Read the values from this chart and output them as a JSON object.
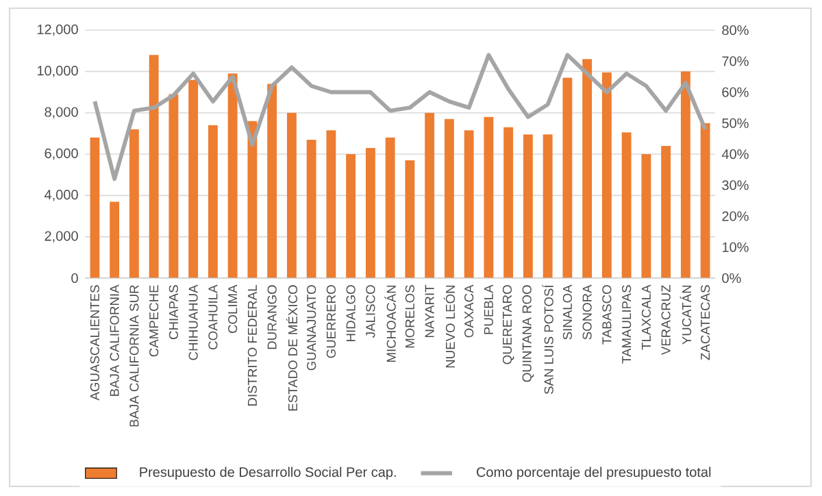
{
  "chart_data": {
    "type": "bar",
    "categories": [
      "AGUASCALIENTES",
      "BAJA CALIFORNIA",
      "BAJA CALIFORNIA SUR",
      "CAMPECHE",
      "CHIAPAS",
      "CHIHUAHUA",
      "COAHUILA",
      "COLIMA",
      "DISTRITO FEDERAL",
      "DURANGO",
      "ESTADO DE MÉXICO",
      "GUANAJUATO",
      "GUERRERO",
      "HIDALGO",
      "JALISCO",
      "MICHOACÁN",
      "MORELOS",
      "NAYARIT",
      "NUEVO LEÓN",
      "OAXACA",
      "PUEBLA",
      "QUERETARO",
      "QUINTANA ROO",
      "SAN LUIS POTOSÍ",
      "SINALOA",
      "SONORA",
      "TABASCO",
      "TAMAULIPAS",
      "TLAXCALA",
      "VERACRUZ",
      "YUCATÁN",
      "ZACATECAS"
    ],
    "series": [
      {
        "name": "Presupuesto de Desarrollo Social Per cap.",
        "color": "#ed7d31",
        "values": [
          6800,
          3700,
          7200,
          10800,
          8900,
          9600,
          7400,
          9900,
          7600,
          9400,
          8000,
          6700,
          7150,
          6000,
          6300,
          6800,
          5700,
          8000,
          7700,
          7150,
          7800,
          7300,
          6950,
          6950,
          9700,
          10600,
          9950,
          7050,
          6000,
          6400,
          10000,
          7500
        ]
      },
      {
        "name": "Como porcentaje del presupuesto total",
        "type": "line",
        "axis": "y2",
        "color": "#a5a5a5",
        "values": [
          57,
          32,
          54,
          55,
          59,
          66,
          57,
          65,
          43,
          62,
          68,
          62,
          60,
          60,
          60,
          54,
          55,
          60,
          57,
          55,
          72,
          61,
          52,
          56,
          72,
          66,
          60,
          66,
          62,
          54,
          63,
          48
        ]
      }
    ],
    "ylim": [
      0,
      12000
    ],
    "yticks": [
      0,
      {
        "value": 2000,
        "label": "2,000"
      },
      {
        "value": 4000,
        "label": "4,000"
      },
      {
        "value": 6000,
        "label": "6,000"
      },
      {
        "value": 8000,
        "label": "8,000"
      },
      {
        "value": 10000,
        "label": "10,000"
      },
      {
        "value": 12000,
        "label": "12,000"
      }
    ],
    "y2lim": [
      0,
      80
    ],
    "y2ticks": [
      {
        "value": 0,
        "label": "0%"
      },
      {
        "value": 10,
        "label": "10%"
      },
      {
        "value": 20,
        "label": "20%"
      },
      {
        "value": 30,
        "label": "30%"
      },
      {
        "value": 40,
        "label": "40%"
      },
      {
        "value": 50,
        "label": "50%"
      },
      {
        "value": 60,
        "label": "60%"
      },
      {
        "value": 70,
        "label": "70%"
      },
      {
        "value": 80,
        "label": "80%"
      }
    ],
    "grid": "y",
    "legend": "bottom"
  }
}
